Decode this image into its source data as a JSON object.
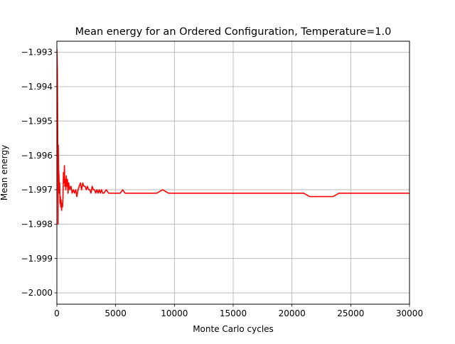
{
  "chart_data": {
    "type": "line",
    "title": "Mean energy for an Ordered Configuration, Temperature=1.0",
    "xlabel": "Monte Carlo cycles",
    "ylabel": "Mean energy",
    "xlim": [
      0,
      30000
    ],
    "ylim": [
      -2.00033,
      -1.99268
    ],
    "grid": true,
    "legend": "none",
    "x_ticks": [
      0,
      5000,
      10000,
      15000,
      20000,
      25000,
      30000
    ],
    "x_tick_labels": [
      "0",
      "5000",
      "10000",
      "15000",
      "20000",
      "25000",
      "30000"
    ],
    "y_ticks": [
      -1.993,
      -1.994,
      -1.995,
      -1.996,
      -1.997,
      -1.998,
      -1.999,
      -2.0
    ],
    "y_tick_labels": [
      "−1.993",
      "−1.994",
      "−1.995",
      "−1.996",
      "−1.997",
      "−1.998",
      "−1.999",
      "−2.000"
    ],
    "series": [
      {
        "color": "#ff0000",
        "x": [
          0,
          20,
          40,
          60,
          80,
          100,
          120,
          150,
          180,
          210,
          240,
          270,
          300,
          330,
          360,
          400,
          440,
          480,
          520,
          560,
          600,
          640,
          680,
          720,
          760,
          800,
          850,
          900,
          950,
          1000,
          1100,
          1200,
          1300,
          1400,
          1500,
          1600,
          1700,
          1800,
          1900,
          2000,
          2100,
          2200,
          2300,
          2400,
          2500,
          2600,
          2700,
          2800,
          2900,
          3000,
          3100,
          3200,
          3300,
          3400,
          3500,
          3600,
          3700,
          3800,
          3900,
          4000,
          4200,
          4400,
          4600,
          4800,
          5000,
          5200,
          5400,
          5600,
          5800,
          6000,
          6500,
          7000,
          7500,
          8000,
          8500,
          9000,
          9500,
          10000,
          10500,
          11000,
          11500,
          12000,
          12500,
          13000,
          13500,
          14000,
          14500,
          15000,
          15500,
          16000,
          16500,
          17000,
          17500,
          18000,
          18500,
          19000,
          19500,
          20000,
          20500,
          21000,
          21500,
          22000,
          22500,
          23000,
          23500,
          24000,
          24500,
          25000,
          25500,
          26000,
          26500,
          27000,
          27500,
          28000,
          28500,
          29000,
          29500,
          30000
        ],
        "y": [
          -1.9929,
          -1.9931,
          -1.9935,
          -1.9945,
          -1.996,
          -1.998,
          -1.9957,
          -1.9964,
          -1.9966,
          -1.9971,
          -1.9968,
          -1.9974,
          -1.9972,
          -1.9975,
          -1.9973,
          -1.9976,
          -1.9974,
          -1.9975,
          -1.9972,
          -1.9965,
          -1.9968,
          -1.9963,
          -1.9969,
          -1.9967,
          -1.997,
          -1.9966,
          -1.9969,
          -1.9967,
          -1.9971,
          -1.9968,
          -1.997,
          -1.9969,
          -1.9971,
          -1.997,
          -1.9971,
          -1.997,
          -1.9972,
          -1.997,
          -1.9969,
          -1.9968,
          -1.997,
          -1.9968,
          -1.9969,
          -1.9969,
          -1.997,
          -1.9969,
          -1.997,
          -1.997,
          -1.9971,
          -1.9969,
          -1.997,
          -1.997,
          -1.9971,
          -1.997,
          -1.9971,
          -1.997,
          -1.9971,
          -1.997,
          -1.9971,
          -1.9971,
          -1.997,
          -1.9971,
          -1.9971,
          -1.9971,
          -1.9971,
          -1.9971,
          -1.9971,
          -1.997,
          -1.9971,
          -1.9971,
          -1.9971,
          -1.9971,
          -1.9971,
          -1.9971,
          -1.9971,
          -1.997,
          -1.9971,
          -1.9971,
          -1.9971,
          -1.9971,
          -1.9971,
          -1.9971,
          -1.9971,
          -1.9971,
          -1.9971,
          -1.9971,
          -1.9971,
          -1.9971,
          -1.9971,
          -1.9971,
          -1.9971,
          -1.9971,
          -1.9971,
          -1.9971,
          -1.9971,
          -1.9971,
          -1.9971,
          -1.9971,
          -1.9971,
          -1.9971,
          -1.9972,
          -1.9972,
          -1.9972,
          -1.9972,
          -1.9972,
          -1.9971,
          -1.9971,
          -1.9971,
          -1.9971,
          -1.9971,
          -1.9971,
          -1.9971,
          -1.9971,
          -1.9971,
          -1.9971,
          -1.9971,
          -1.9971,
          -1.9971
        ]
      }
    ]
  }
}
